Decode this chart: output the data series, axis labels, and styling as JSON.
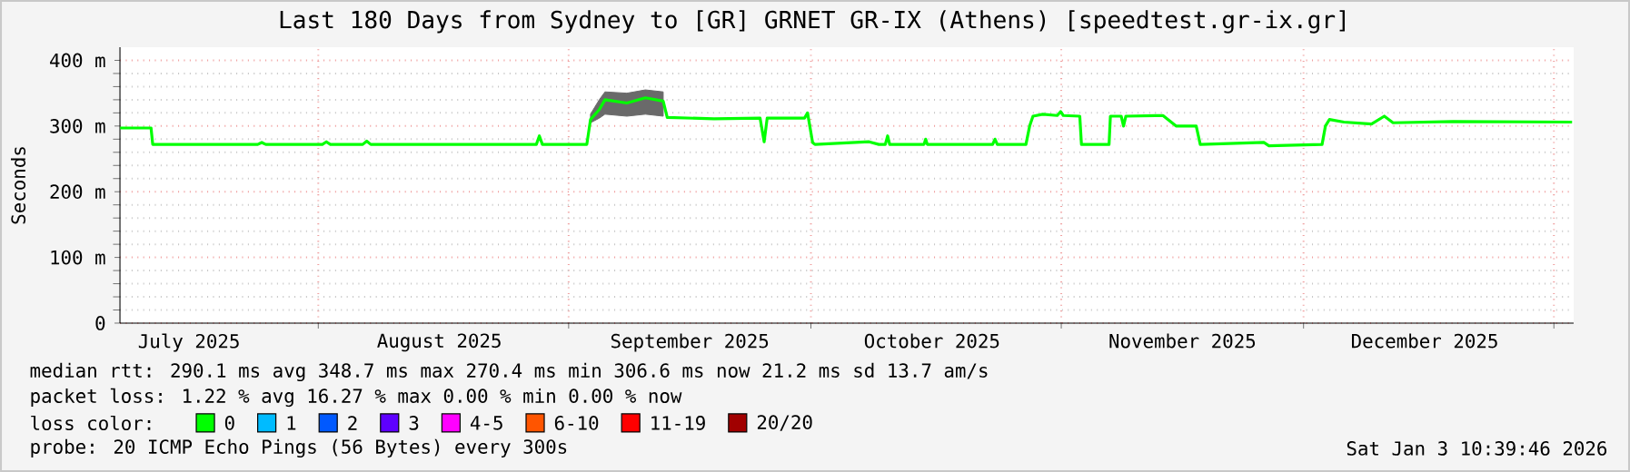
{
  "chart_data": {
    "type": "line",
    "title": "Last 180 Days from Sydney to [GR] GRNET GR-IX (Athens) [speedtest.gr-ix.gr]",
    "ylabel": "Seconds",
    "x": [
      "2025-07-07T11:00",
      "2025-07-11T07:00",
      "2025-07-11T12:00",
      "2025-07-24T12:00",
      "2025-07-25T00:00",
      "2025-07-25T12:00",
      "2025-08-01T12:00",
      "2025-08-02T00:00",
      "2025-08-02T12:00",
      "2025-08-06T12:00",
      "2025-08-07T00:00",
      "2025-08-07T12:00",
      "2025-08-28T00:00",
      "2025-08-28T09:00",
      "2025-08-28T18:00",
      "2025-09-03T06:00",
      "2025-09-03T17:00",
      "2025-09-04T19:00",
      "2025-09-05T12:00",
      "2025-09-08T05:00",
      "2025-09-10T12:00",
      "2025-09-12T17:00",
      "2025-09-13T05:00",
      "2025-09-19T00:00",
      "2025-09-24T17:00",
      "2025-09-25T05:00",
      "2025-09-25T14:00",
      "2025-09-30T05:00",
      "2025-09-30T14:00",
      "2025-10-01T05:00",
      "2025-10-01T12:00",
      "2025-10-08T05:00",
      "2025-10-09T10:00",
      "2025-10-10T05:00",
      "2025-10-10T12:00",
      "2025-10-10T18:00",
      "2025-10-15T00:00",
      "2025-10-15T05:00",
      "2025-10-15T10:00",
      "2025-10-23T12:00",
      "2025-10-23T19:00",
      "2025-10-24T02:00",
      "2025-10-27T15:00",
      "2025-10-28T02:00",
      "2025-10-28T12:00",
      "2025-10-29T17:00",
      "2025-10-31T12:00",
      "2025-10-31T22:00",
      "2025-11-01T06:00",
      "2025-11-03T07:00",
      "2025-11-03T12:00",
      "2025-11-06T22:00",
      "2025-11-07T02:00",
      "2025-11-08T10:00",
      "2025-11-08T17:00",
      "2025-11-09T00:00",
      "2025-11-13T14:00",
      "2025-11-15T05:00",
      "2025-11-17T17:00",
      "2025-11-18T05:00",
      "2025-11-26T02:00",
      "2025-11-26T17:00",
      "2025-12-03T07:00",
      "2025-12-03T17:00",
      "2025-12-04T05:00",
      "2025-12-06T00:00",
      "2025-12-09T10:00",
      "2025-12-11T00:00",
      "2025-12-12T02:00",
      "2025-12-19T12:00",
      "2026-01-03T06:00"
    ],
    "series": [
      {
        "name": "0",
        "color": "#00ff00",
        "values": [
          297,
          297,
          272,
          272,
          275,
          272,
          272,
          276,
          272,
          272,
          277,
          272,
          272,
          285,
          272,
          272,
          310,
          325,
          340,
          335,
          343,
          338,
          313,
          311,
          312,
          276,
          312,
          312,
          320,
          275,
          272,
          276,
          272,
          272,
          285,
          272,
          272,
          280,
          272,
          272,
          280,
          272,
          272,
          300,
          315,
          318,
          316,
          322,
          316,
          315,
          272,
          272,
          315,
          315,
          300,
          315,
          316,
          300,
          300,
          272,
          275,
          270,
          272,
          300,
          310,
          306,
          303,
          315,
          305,
          307,
          306
        ],
        "lower": [
          null,
          null,
          null,
          null,
          null,
          null,
          null,
          null,
          null,
          null,
          null,
          null,
          null,
          null,
          null,
          null,
          305,
          312,
          318,
          315,
          318,
          315,
          null,
          null,
          null,
          null,
          null,
          null,
          null,
          null,
          null,
          null,
          null,
          null,
          null,
          null,
          null,
          null,
          null,
          null,
          null,
          null,
          null,
          null,
          null,
          null,
          null,
          null,
          null,
          null,
          null,
          null,
          null,
          null,
          null,
          null,
          null,
          null,
          null,
          null,
          null,
          null,
          null,
          null,
          null,
          null,
          null,
          null,
          null,
          null,
          null
        ],
        "upper": [
          null,
          null,
          null,
          null,
          null,
          null,
          null,
          null,
          null,
          null,
          null,
          null,
          null,
          null,
          null,
          null,
          318,
          340,
          352,
          350,
          355,
          352,
          null,
          null,
          null,
          null,
          null,
          null,
          null,
          null,
          null,
          null,
          null,
          null,
          null,
          null,
          null,
          null,
          null,
          null,
          null,
          null,
          null,
          null,
          null,
          null,
          null,
          null,
          null,
          null,
          null,
          null,
          null,
          null,
          null,
          null,
          null,
          null,
          null,
          null,
          null,
          null,
          null,
          null,
          null,
          null,
          null,
          null,
          null,
          null,
          null
        ]
      },
      {
        "name": "1",
        "color": "#00bbff",
        "values": [
          null,
          null,
          null,
          null,
          null,
          null,
          null,
          null,
          null,
          null,
          null,
          null,
          null,
          null,
          null,
          null,
          null,
          null,
          null,
          null,
          null,
          null,
          null,
          null,
          null,
          null,
          null,
          null,
          null,
          null,
          null,
          null,
          null,
          null,
          null,
          null,
          null,
          null,
          null,
          null,
          null,
          null,
          null,
          null,
          null,
          null,
          null,
          null,
          null,
          null,
          null,
          null,
          null,
          null,
          null,
          null,
          null,
          null,
          null,
          null,
          null,
          null,
          null,
          null,
          null,
          null,
          null,
          null,
          null,
          null,
          null
        ]
      },
      {
        "name": "2",
        "color": "#0059ff",
        "values": [
          null,
          null,
          null,
          null,
          null,
          null,
          null,
          null,
          null,
          null,
          null,
          null,
          null,
          null,
          null,
          null,
          null,
          null,
          null,
          null,
          null,
          null,
          null,
          null,
          null,
          null,
          null,
          null,
          null,
          null,
          null,
          null,
          null,
          null,
          null,
          null,
          null,
          null,
          null,
          null,
          null,
          null,
          null,
          null,
          null,
          null,
          null,
          null,
          null,
          null,
          null,
          null,
          null,
          null,
          null,
          null,
          null,
          null,
          null,
          null,
          null,
          null,
          null,
          null,
          null,
          null,
          null,
          null,
          null,
          null,
          null
        ]
      },
      {
        "name": "3",
        "color": "#5e00ff",
        "values": [
          null,
          null,
          null,
          null,
          null,
          null,
          null,
          null,
          null,
          null,
          null,
          null,
          null,
          null,
          null,
          null,
          null,
          null,
          null,
          null,
          null,
          null,
          null,
          null,
          null,
          null,
          null,
          null,
          null,
          null,
          null,
          null,
          null,
          null,
          null,
          null,
          null,
          null,
          null,
          null,
          null,
          null,
          null,
          null,
          null,
          null,
          null,
          null,
          null,
          null,
          null,
          null,
          null,
          null,
          null,
          null,
          null,
          null,
          null,
          null,
          null,
          null,
          null,
          null,
          null,
          null,
          null,
          null,
          null,
          null,
          null
        ]
      },
      {
        "name": "4-5",
        "color": "#ff00ff",
        "values": [
          null,
          null,
          null,
          null,
          null,
          null,
          null,
          null,
          null,
          null,
          null,
          null,
          null,
          null,
          null,
          null,
          null,
          null,
          null,
          null,
          null,
          null,
          null,
          null,
          null,
          null,
          null,
          null,
          null,
          null,
          null,
          null,
          null,
          null,
          null,
          null,
          null,
          null,
          null,
          null,
          null,
          null,
          null,
          null,
          null,
          null,
          null,
          null,
          null,
          null,
          null,
          null,
          null,
          null,
          null,
          null,
          null,
          null,
          null,
          null,
          null,
          null,
          null,
          null,
          null,
          null,
          null,
          null,
          null,
          null,
          null
        ]
      },
      {
        "name": "6-10",
        "color": "#ff5500",
        "values": [
          null,
          null,
          null,
          null,
          null,
          null,
          null,
          null,
          null,
          null,
          null,
          null,
          null,
          null,
          null,
          null,
          null,
          null,
          null,
          null,
          null,
          null,
          null,
          null,
          null,
          null,
          null,
          null,
          null,
          null,
          null,
          null,
          null,
          null,
          null,
          null,
          null,
          null,
          null,
          null,
          null,
          null,
          null,
          null,
          null,
          null,
          null,
          null,
          null,
          null,
          null,
          null,
          null,
          null,
          null,
          null,
          null,
          null,
          null,
          null,
          null,
          null,
          null,
          null,
          null,
          null,
          null,
          null,
          null,
          null,
          null
        ]
      },
      {
        "name": "11-19",
        "color": "#ff0000",
        "values": [
          null,
          null,
          null,
          null,
          null,
          null,
          null,
          null,
          null,
          null,
          null,
          null,
          null,
          null,
          null,
          null,
          null,
          null,
          null,
          null,
          null,
          null,
          null,
          null,
          null,
          null,
          null,
          null,
          null,
          null,
          null,
          null,
          null,
          null,
          null,
          null,
          null,
          null,
          null,
          null,
          null,
          null,
          null,
          null,
          null,
          null,
          null,
          null,
          null,
          null,
          null,
          null,
          null,
          null,
          null,
          null,
          null,
          null,
          null,
          null,
          null,
          null,
          null,
          null,
          null,
          null,
          null,
          null,
          null,
          null,
          null
        ]
      },
      {
        "name": "20/20",
        "color": "#a10000",
        "values": [
          null,
          null,
          null,
          null,
          null,
          null,
          null,
          null,
          null,
          null,
          null,
          null,
          null,
          null,
          null,
          null,
          null,
          null,
          null,
          null,
          null,
          null,
          null,
          null,
          null,
          null,
          null,
          null,
          null,
          null,
          null,
          null,
          null,
          null,
          null,
          null,
          null,
          null,
          null,
          null,
          null,
          null,
          null,
          null,
          null,
          null,
          null,
          null,
          null,
          null,
          null,
          null,
          null,
          null,
          null,
          null,
          null,
          null,
          null,
          null,
          null,
          null,
          null,
          null,
          null,
          null,
          null,
          null,
          null,
          null,
          null
        ]
      }
    ],
    "legend": "bottom",
    "legend_title": "loss color:",
    "xlim": [
      "2025-07-07T10:39",
      "2026-01-03T10:39"
    ],
    "xticks": [
      {
        "value": "2025-08-01",
        "label": null
      },
      {
        "value": "2025-09-01",
        "label": null
      },
      {
        "value": "2025-10-01",
        "label": null
      },
      {
        "value": "2025-11-01",
        "label": null
      },
      {
        "value": "2025-12-01",
        "label": null
      },
      {
        "value": "2026-01-01",
        "label": null
      },
      {
        "value": "2025-07-16",
        "label": "July 2025"
      },
      {
        "value": "2025-08-16",
        "label": "August 2025"
      },
      {
        "value": "2025-09-16",
        "label": "September 2025"
      },
      {
        "value": "2025-10-16",
        "label": "October 2025"
      },
      {
        "value": "2025-11-16",
        "label": "November 2025"
      },
      {
        "value": "2025-12-16",
        "label": "December 2025"
      }
    ],
    "ylim": [
      0,
      420
    ],
    "yticks": [
      0,
      {
        "value": 100,
        "label": "100 m"
      },
      {
        "value": 200,
        "label": "200 m"
      },
      {
        "value": 300,
        "label": "300 m"
      },
      {
        "value": 400,
        "label": "400 m"
      }
    ],
    "grid": true,
    "annotations": [
      "median rtt:  290.1 ms avg  348.7 ms max  270.4 ms min  306.6 ms now  21.2 ms sd  13.7   am/s",
      "packet loss: 1.22 % avg  16.27 % max  0.00 % min  0.00 % now",
      "probe:       20 ICMP Echo Pings (56 Bytes) every 300s",
      "Sat Jan  3 10:39:46 2026"
    ]
  }
}
